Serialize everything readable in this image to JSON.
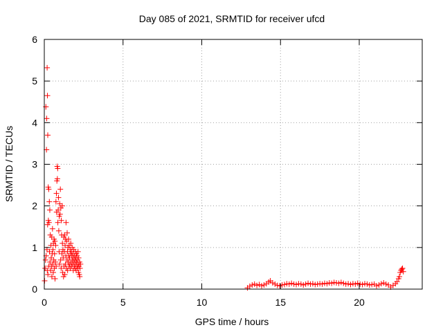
{
  "chart_data": {
    "type": "scatter",
    "title": "Day 085 of 2021, SRMTID for receiver ufcd",
    "xlabel": "GPS time / hours",
    "ylabel": "SRMTID / TECUs",
    "xlim": [
      0,
      24
    ],
    "ylim": [
      0,
      6
    ],
    "xticks": [
      0,
      5,
      10,
      15,
      20
    ],
    "yticks": [
      0,
      1,
      2,
      3,
      4,
      5,
      6
    ],
    "grid": true,
    "marker": "+",
    "series": [
      {
        "name": "SRMTID",
        "color": "#ff0000",
        "points": [
          [
            0.02,
            0.2
          ],
          [
            0.05,
            0.5
          ],
          [
            0.08,
            0.7
          ],
          [
            0.1,
            4.38
          ],
          [
            0.12,
            0.8
          ],
          [
            0.14,
            3.35
          ],
          [
            0.15,
            4.1
          ],
          [
            0.17,
            0.95
          ],
          [
            0.18,
            5.32
          ],
          [
            0.19,
            0.45
          ],
          [
            0.2,
            4.65
          ],
          [
            0.21,
            1.55
          ],
          [
            0.22,
            3.7
          ],
          [
            0.23,
            0.35
          ],
          [
            0.25,
            2.45
          ],
          [
            0.26,
            1.65
          ],
          [
            0.28,
            2.4
          ],
          [
            0.29,
            0.55
          ],
          [
            0.3,
            1.6
          ],
          [
            0.32,
            2.1
          ],
          [
            0.33,
            0.9
          ],
          [
            0.35,
            1.9
          ],
          [
            0.36,
            0.65
          ],
          [
            0.38,
            1.3
          ],
          [
            0.4,
            0.45
          ],
          [
            0.42,
            1.05
          ],
          [
            0.44,
            0.75
          ],
          [
            0.45,
            0.55
          ],
          [
            0.47,
            1.25
          ],
          [
            0.48,
            0.3
          ],
          [
            0.5,
            0.85
          ],
          [
            0.52,
            1.45
          ],
          [
            0.54,
            0.6
          ],
          [
            0.55,
            0.95
          ],
          [
            0.57,
            0.4
          ],
          [
            0.58,
            1.1
          ],
          [
            0.6,
            0.7
          ],
          [
            0.62,
            1.2
          ],
          [
            0.64,
            0.5
          ],
          [
            0.65,
            0.85
          ],
          [
            0.67,
            1.15
          ],
          [
            0.68,
            0.25
          ],
          [
            0.7,
            0.65
          ],
          [
            0.72,
            1.05
          ],
          [
            0.74,
            2.1
          ],
          [
            0.75,
            0.55
          ],
          [
            0.77,
            2.3
          ],
          [
            0.78,
            1.85
          ],
          [
            0.8,
            2.6
          ],
          [
            0.82,
            2.95
          ],
          [
            0.83,
            2.65
          ],
          [
            0.85,
            2.9
          ],
          [
            0.86,
            1.6
          ],
          [
            0.88,
            1.9
          ],
          [
            0.9,
            2.2
          ],
          [
            0.92,
            1.4
          ],
          [
            0.94,
            0.9
          ],
          [
            0.95,
            1.75
          ],
          [
            0.97,
            0.6
          ],
          [
            0.98,
            2.05
          ],
          [
            1.0,
            1.8
          ],
          [
            1.02,
            2.4
          ],
          [
            1.04,
            0.7
          ],
          [
            1.05,
            1.95
          ],
          [
            1.07,
            0.5
          ],
          [
            1.08,
            1.65
          ],
          [
            1.1,
            1.3
          ],
          [
            1.12,
            0.85
          ],
          [
            1.14,
            2.0
          ],
          [
            1.15,
            1.1
          ],
          [
            1.17,
            0.4
          ],
          [
            1.18,
            0.95
          ],
          [
            1.2,
            0.75
          ],
          [
            1.22,
            0.3
          ],
          [
            1.24,
            1.25
          ],
          [
            1.25,
            0.55
          ],
          [
            1.27,
            0.9
          ],
          [
            1.28,
            1.3
          ],
          [
            1.3,
            0.35
          ],
          [
            1.32,
            1.05
          ],
          [
            1.34,
            0.6
          ],
          [
            1.35,
            1.2
          ],
          [
            1.37,
            0.8
          ],
          [
            1.38,
            1.6
          ],
          [
            1.4,
            0.5
          ],
          [
            1.42,
            1.15
          ],
          [
            1.44,
            0.7
          ],
          [
            1.45,
            1.35
          ],
          [
            1.47,
            0.9
          ],
          [
            1.48,
            0.45
          ],
          [
            1.5,
            1.0
          ],
          [
            1.52,
            0.65
          ],
          [
            1.54,
            1.2
          ],
          [
            1.55,
            0.8
          ],
          [
            1.57,
            0.55
          ],
          [
            1.58,
            1.05
          ],
          [
            1.6,
            0.75
          ],
          [
            1.62,
            0.6
          ],
          [
            1.64,
            0.95
          ],
          [
            1.65,
            0.5
          ],
          [
            1.67,
            0.85
          ],
          [
            1.68,
            1.1
          ],
          [
            1.7,
            0.65
          ],
          [
            1.72,
            0.9
          ],
          [
            1.74,
            0.55
          ],
          [
            1.75,
            0.8
          ],
          [
            1.77,
            1.0
          ],
          [
            1.78,
            0.7
          ],
          [
            1.8,
            0.6
          ],
          [
            1.82,
            0.85
          ],
          [
            1.84,
            0.45
          ],
          [
            1.85,
            0.75
          ],
          [
            1.87,
            0.95
          ],
          [
            1.88,
            0.65
          ],
          [
            1.9,
            0.55
          ],
          [
            1.92,
            0.8
          ],
          [
            1.94,
            0.7
          ],
          [
            1.95,
            0.5
          ],
          [
            1.97,
            0.9
          ],
          [
            1.98,
            0.6
          ],
          [
            2.0,
            0.75
          ],
          [
            2.02,
            0.45
          ],
          [
            2.04,
            0.85
          ],
          [
            2.05,
            0.65
          ],
          [
            2.07,
            0.55
          ],
          [
            2.08,
            0.8
          ],
          [
            2.1,
            0.7
          ],
          [
            2.12,
            0.5
          ],
          [
            2.14,
            0.9
          ],
          [
            2.15,
            0.6
          ],
          [
            2.17,
            0.4
          ],
          [
            2.18,
            0.75
          ],
          [
            2.2,
            0.55
          ],
          [
            2.22,
            0.35
          ],
          [
            2.24,
            0.65
          ],
          [
            2.25,
            0.3
          ],
          [
            2.27,
            0.5
          ],
          [
            2.3,
            0.6
          ],
          [
            12.9,
            0.03
          ],
          [
            13.05,
            0.07
          ],
          [
            13.2,
            0.1
          ],
          [
            13.35,
            0.12
          ],
          [
            13.5,
            0.09
          ],
          [
            13.65,
            0.11
          ],
          [
            13.8,
            0.08
          ],
          [
            13.95,
            0.1
          ],
          [
            14.1,
            0.13
          ],
          [
            14.25,
            0.17
          ],
          [
            14.35,
            0.2
          ],
          [
            14.5,
            0.15
          ],
          [
            14.65,
            0.12
          ],
          [
            14.8,
            0.09
          ],
          [
            14.95,
            0.08
          ],
          [
            15.1,
            0.1
          ],
          [
            15.25,
            0.11
          ],
          [
            15.4,
            0.13
          ],
          [
            15.55,
            0.12
          ],
          [
            15.7,
            0.14
          ],
          [
            15.85,
            0.12
          ],
          [
            16.0,
            0.11
          ],
          [
            16.15,
            0.13
          ],
          [
            16.3,
            0.12
          ],
          [
            16.45,
            0.1
          ],
          [
            16.6,
            0.12
          ],
          [
            16.75,
            0.14
          ],
          [
            16.9,
            0.12
          ],
          [
            17.05,
            0.13
          ],
          [
            17.2,
            0.11
          ],
          [
            17.35,
            0.12
          ],
          [
            17.5,
            0.13
          ],
          [
            17.65,
            0.12
          ],
          [
            17.8,
            0.14
          ],
          [
            17.95,
            0.13
          ],
          [
            18.1,
            0.15
          ],
          [
            18.25,
            0.14
          ],
          [
            18.4,
            0.16
          ],
          [
            18.55,
            0.15
          ],
          [
            18.7,
            0.14
          ],
          [
            18.85,
            0.16
          ],
          [
            19.0,
            0.14
          ],
          [
            19.15,
            0.12
          ],
          [
            19.3,
            0.13
          ],
          [
            19.45,
            0.11
          ],
          [
            19.6,
            0.13
          ],
          [
            19.75,
            0.12
          ],
          [
            19.9,
            0.14
          ],
          [
            20.05,
            0.12
          ],
          [
            20.2,
            0.11
          ],
          [
            20.35,
            0.13
          ],
          [
            20.5,
            0.12
          ],
          [
            20.65,
            0.1
          ],
          [
            20.8,
            0.11
          ],
          [
            20.95,
            0.12
          ],
          [
            21.1,
            0.08
          ],
          [
            21.25,
            0.1
          ],
          [
            21.4,
            0.13
          ],
          [
            21.55,
            0.15
          ],
          [
            21.7,
            0.12
          ],
          [
            21.85,
            0.1
          ],
          [
            22.0,
            0.05
          ],
          [
            22.15,
            0.09
          ],
          [
            22.3,
            0.13
          ],
          [
            22.4,
            0.18
          ],
          [
            22.5,
            0.25
          ],
          [
            22.55,
            0.3
          ],
          [
            22.6,
            0.4
          ],
          [
            22.65,
            0.45
          ],
          [
            22.7,
            0.48
          ],
          [
            22.75,
            0.5
          ],
          [
            22.8,
            0.42
          ]
        ]
      }
    ]
  }
}
